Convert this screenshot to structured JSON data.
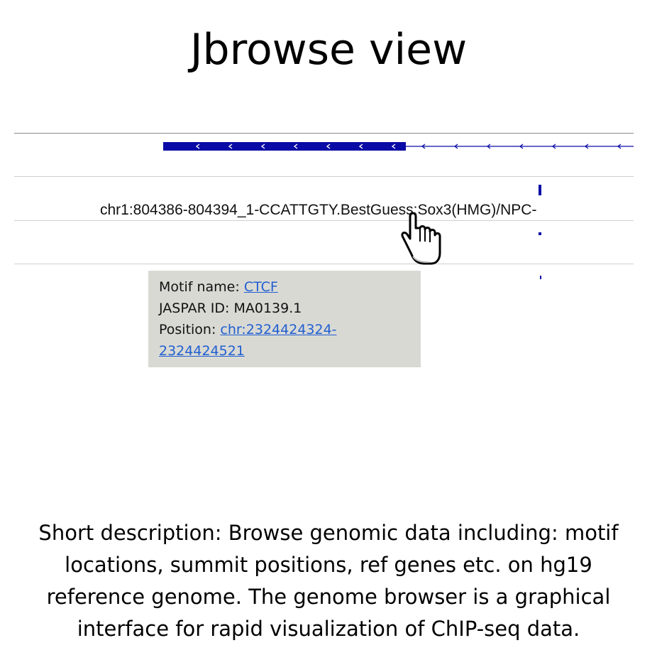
{
  "slide": {
    "title": "Jbrowse view",
    "description": "Short description: Browse genomic data including: motif locations, summit positions, ref genes etc. on hg19 reference genome.  The genome browser is a graphical interface for rapid visualization of ChIP-seq data."
  },
  "browser": {
    "feature_label": "chr1:804386-804394_1-CCATTGTY.BestGuess:Sox3(HMG)/NPC-",
    "colors": {
      "feature_blue": "#0a0aa6",
      "popup_bg": "#d9d9d4",
      "link": "#1f5fd1"
    },
    "cursor_icon": "hand-pointer-icon"
  },
  "popup": {
    "motif_name_label": "Motif name: ",
    "motif_name_value": "CTCF",
    "jaspar_label": "JASPAR ID: ",
    "jaspar_value": "MA0139.1",
    "position_label": "Position: ",
    "position_value": "chr:2324424324-2324424521"
  }
}
